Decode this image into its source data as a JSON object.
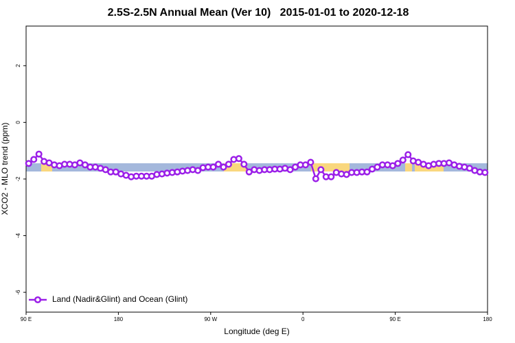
{
  "chart_data": {
    "type": "line",
    "title": "2.5S-2.5N Annual Mean (Ver 10)   2015-01-01 to 2020-12-18",
    "x_label": "Longitude (deg E)",
    "y_label": "XCO2 - MLO trend (ppm)",
    "xlim": [
      90,
      540
    ],
    "ylim": [
      -6.7,
      3.4
    ],
    "xticks": [
      {
        "value": 90,
        "label": "90 E"
      },
      180,
      {
        "value": 270,
        "label": "90 W"
      },
      {
        "value": 360,
        "label": "0"
      },
      {
        "value": 450,
        "label": "90 E"
      },
      {
        "value": 540,
        "label": "180"
      }
    ],
    "yticks": [
      -6,
      -4,
      -2,
      0,
      2
    ],
    "grid": false,
    "legend": "bottom left",
    "x": [
      92.5,
      97.5,
      102.5,
      107.5,
      112.5,
      117.5,
      122.5,
      127.5,
      132.5,
      137.5,
      142.5,
      147.5,
      152.5,
      157.5,
      162.5,
      167.5,
      172.5,
      177.5,
      182.5,
      187.5,
      192.5,
      197.5,
      202.5,
      207.5,
      212.5,
      217.5,
      222.5,
      227.5,
      232.5,
      237.5,
      242.5,
      247.5,
      252.5,
      257.5,
      262.5,
      267.5,
      272.5,
      277.5,
      282.5,
      287.5,
      292.5,
      297.5,
      302.5,
      307.5,
      312.5,
      317.5,
      322.5,
      327.5,
      332.5,
      337.5,
      342.5,
      347.5,
      352.5,
      357.5,
      362.5,
      367.5,
      372.5,
      377.5,
      382.5,
      387.5,
      392.5,
      397.5,
      402.5,
      407.5,
      412.5,
      417.5,
      422.5,
      427.5,
      432.5,
      437.5,
      442.5,
      447.5,
      452.5,
      457.5,
      462.5,
      467.5,
      472.5,
      477.5,
      482.5,
      487.5,
      492.5,
      497.5,
      502.5,
      507.5,
      512.5,
      517.5,
      522.5,
      527.5,
      532.5,
      537.5
    ],
    "series": [
      {
        "name": "Land (Nadir&Glint) and Ocean (Glint)",
        "color": "#9b1fe8",
        "values": [
          -1.45,
          -1.31,
          -1.12,
          -1.38,
          -1.43,
          -1.5,
          -1.53,
          -1.48,
          -1.48,
          -1.5,
          -1.43,
          -1.5,
          -1.58,
          -1.58,
          -1.62,
          -1.67,
          -1.75,
          -1.75,
          -1.82,
          -1.87,
          -1.92,
          -1.9,
          -1.9,
          -1.9,
          -1.9,
          -1.84,
          -1.82,
          -1.79,
          -1.77,
          -1.75,
          -1.72,
          -1.7,
          -1.67,
          -1.7,
          -1.6,
          -1.58,
          -1.58,
          -1.48,
          -1.58,
          -1.48,
          -1.31,
          -1.28,
          -1.48,
          -1.75,
          -1.67,
          -1.7,
          -1.67,
          -1.67,
          -1.65,
          -1.65,
          -1.62,
          -1.67,
          -1.58,
          -1.5,
          -1.5,
          -1.41,
          -1.99,
          -1.67,
          -1.92,
          -1.92,
          -1.77,
          -1.82,
          -1.84,
          -1.77,
          -1.77,
          -1.75,
          -1.75,
          -1.65,
          -1.58,
          -1.5,
          -1.5,
          -1.53,
          -1.45,
          -1.33,
          -1.14,
          -1.36,
          -1.41,
          -1.48,
          -1.53,
          -1.48,
          -1.45,
          -1.45,
          -1.43,
          -1.5,
          -1.55,
          -1.58,
          -1.62,
          -1.7,
          -1.75,
          -1.77
        ]
      }
    ]
  }
}
